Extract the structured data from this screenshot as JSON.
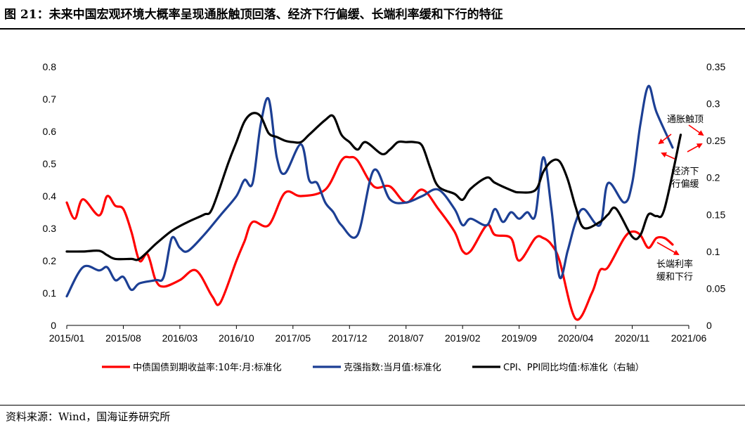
{
  "header": {
    "title": "图 21：未来中国宏观环境大概率呈现通胀触顶回落、经济下行偏缓、长端利率缓和下行的特征"
  },
  "footer": {
    "source": "资料来源：Wind，国海证券研究所"
  },
  "colors": {
    "red": "#ff0000",
    "blue": "#1c3f94",
    "black": "#000000",
    "arrow": "#ff0000"
  },
  "chart_data": {
    "type": "line",
    "x_ticks": [
      "2015/01",
      "2015/08",
      "2016/03",
      "2016/10",
      "2017/05",
      "2017/12",
      "2018/07",
      "2019/02",
      "2019/09",
      "2020/04",
      "2020/11",
      "2021/06"
    ],
    "x_range": [
      "2015/01",
      "2021/06"
    ],
    "ylim_left": [
      0,
      0.8
    ],
    "yticks_left": [
      "0",
      "0.1",
      "0.2",
      "0.3",
      "0.4",
      "0.5",
      "0.6",
      "0.7",
      "0.8"
    ],
    "ylim_right": [
      0,
      0.35
    ],
    "yticks_right": [
      "0",
      "0.05",
      "0.1",
      "0.15",
      "0.2",
      "0.25",
      "0.3",
      "0.35"
    ],
    "grid": false,
    "legend_position": "bottom",
    "series": [
      {
        "name": "中债国债到期收益率:10年:月:标准化",
        "color": "#ff0000",
        "axis": "left",
        "x": [
          "2015/01",
          "2015/02",
          "2015/03",
          "2015/05",
          "2015/06",
          "2015/07",
          "2015/08",
          "2015/09",
          "2015/10",
          "2015/11",
          "2015/12",
          "2016/01",
          "2016/03",
          "2016/05",
          "2016/07",
          "2016/08",
          "2016/10",
          "2016/11",
          "2016/12",
          "2017/02",
          "2017/04",
          "2017/06",
          "2017/09",
          "2017/11",
          "2017/12",
          "2018/01",
          "2018/03",
          "2018/05",
          "2018/07",
          "2018/09",
          "2018/11",
          "2019/01",
          "2019/02",
          "2019/03",
          "2019/05",
          "2019/06",
          "2019/08",
          "2019/09",
          "2019/11",
          "2019/12",
          "2020/01",
          "2020/02",
          "2020/04",
          "2020/06",
          "2020/07",
          "2020/08",
          "2020/10",
          "2020/11",
          "2020/12",
          "2021/01",
          "2021/02",
          "2021/03",
          "2021/04"
        ],
        "values": [
          0.38,
          0.33,
          0.39,
          0.34,
          0.4,
          0.37,
          0.36,
          0.29,
          0.2,
          0.22,
          0.14,
          0.12,
          0.14,
          0.17,
          0.09,
          0.07,
          0.2,
          0.26,
          0.32,
          0.31,
          0.41,
          0.4,
          0.42,
          0.51,
          0.52,
          0.51,
          0.43,
          0.43,
          0.38,
          0.42,
          0.36,
          0.29,
          0.23,
          0.23,
          0.31,
          0.28,
          0.27,
          0.2,
          0.27,
          0.27,
          0.25,
          0.2,
          0.02,
          0.1,
          0.17,
          0.18,
          0.27,
          0.29,
          0.28,
          0.24,
          0.27,
          0.27,
          0.25
        ]
      },
      {
        "name": "克强指数:当月值:标准化",
        "color": "#1c3f94",
        "axis": "left",
        "x": [
          "2015/01",
          "2015/03",
          "2015/05",
          "2015/06",
          "2015/07",
          "2015/08",
          "2015/09",
          "2015/10",
          "2015/12",
          "2016/01",
          "2016/02",
          "2016/03",
          "2016/04",
          "2016/06",
          "2016/08",
          "2016/10",
          "2016/11",
          "2016/12",
          "2017/01",
          "2017/02",
          "2017/03",
          "2017/04",
          "2017/06",
          "2017/07",
          "2017/08",
          "2017/09",
          "2017/10",
          "2017/11",
          "2018/01",
          "2018/03",
          "2018/05",
          "2018/07",
          "2018/09",
          "2018/11",
          "2019/01",
          "2019/02",
          "2019/03",
          "2019/05",
          "2019/06",
          "2019/07",
          "2019/08",
          "2019/09",
          "2019/10",
          "2019/11",
          "2019/12",
          "2020/01",
          "2020/02",
          "2020/03",
          "2020/04",
          "2020/05",
          "2020/07",
          "2020/08",
          "2020/10",
          "2020/11",
          "2020/12",
          "2021/01",
          "2021/02",
          "2021/04"
        ],
        "values": [
          0.09,
          0.18,
          0.17,
          0.18,
          0.14,
          0.15,
          0.11,
          0.13,
          0.14,
          0.15,
          0.27,
          0.24,
          0.23,
          0.28,
          0.34,
          0.4,
          0.45,
          0.44,
          0.62,
          0.7,
          0.52,
          0.47,
          0.56,
          0.45,
          0.44,
          0.38,
          0.35,
          0.31,
          0.28,
          0.48,
          0.39,
          0.38,
          0.4,
          0.42,
          0.36,
          0.31,
          0.33,
          0.31,
          0.36,
          0.32,
          0.35,
          0.33,
          0.35,
          0.34,
          0.52,
          0.36,
          0.15,
          0.23,
          0.32,
          0.36,
          0.31,
          0.44,
          0.38,
          0.44,
          0.62,
          0.74,
          0.66,
          0.55
        ]
      },
      {
        "name": "CPI、PPI同比均值:标准化（右轴）",
        "color": "#000000",
        "axis": "right",
        "x": [
          "2015/01",
          "2015/03",
          "2015/05",
          "2015/06",
          "2015/07",
          "2015/09",
          "2015/10",
          "2015/12",
          "2016/02",
          "2016/04",
          "2016/06",
          "2016/07",
          "2016/09",
          "2016/10",
          "2016/11",
          "2016/12",
          "2017/01",
          "2017/02",
          "2017/03",
          "2017/04",
          "2017/05",
          "2017/06",
          "2017/07",
          "2017/09",
          "2017/10",
          "2017/11",
          "2017/12",
          "2018/01",
          "2018/02",
          "2018/04",
          "2018/05",
          "2018/06",
          "2018/07",
          "2018/08",
          "2018/09",
          "2018/10",
          "2018/11",
          "2019/01",
          "2019/02",
          "2019/03",
          "2019/05",
          "2019/06",
          "2019/08",
          "2019/09",
          "2019/11",
          "2019/12",
          "2020/01",
          "2020/02",
          "2020/03",
          "2020/04",
          "2020/05",
          "2020/07",
          "2020/08",
          "2020/09",
          "2020/11",
          "2020/12",
          "2021/01",
          "2021/02",
          "2021/03",
          "2021/05"
        ],
        "values": [
          0.1,
          0.1,
          0.101,
          0.095,
          0.09,
          0.09,
          0.09,
          0.11,
          0.128,
          0.14,
          0.15,
          0.158,
          0.22,
          0.248,
          0.276,
          0.287,
          0.283,
          0.26,
          0.255,
          0.25,
          0.248,
          0.248,
          0.258,
          0.278,
          0.283,
          0.258,
          0.248,
          0.238,
          0.248,
          0.232,
          0.238,
          0.248,
          0.248,
          0.248,
          0.243,
          0.213,
          0.188,
          0.178,
          0.17,
          0.185,
          0.2,
          0.193,
          0.183,
          0.18,
          0.183,
          0.208,
          0.222,
          0.222,
          0.198,
          0.16,
          0.132,
          0.14,
          0.15,
          0.158,
          0.12,
          0.122,
          0.15,
          0.148,
          0.158,
          0.258
        ]
      }
    ],
    "annotations": [
      {
        "text_lines": [
          "通胀触顶"
        ]
      },
      {
        "text_lines": [
          "经济下",
          "行偏缓"
        ]
      },
      {
        "text_lines": [
          "长端利率",
          "缓和下行"
        ]
      }
    ]
  }
}
